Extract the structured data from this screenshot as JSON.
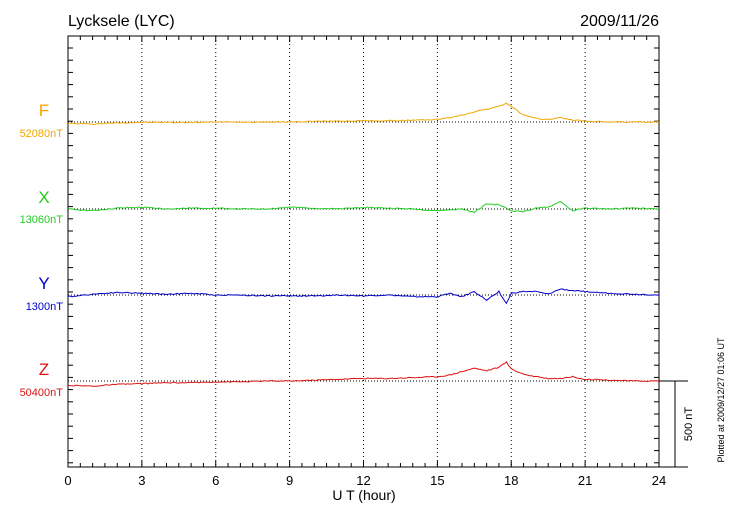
{
  "header": {
    "station": "Lycksele (LYC)",
    "date": "2009/11/26"
  },
  "footer": {
    "plotted_note": "Plotted at 2009/12/27 01:06 UT",
    "scale_label": "500 nT"
  },
  "chart_data": {
    "type": "line",
    "xlabel": "U T (hour)",
    "xlim": [
      0,
      24
    ],
    "x_ticks": [
      0,
      3,
      6,
      9,
      12,
      15,
      18,
      21,
      24
    ],
    "x_tick_labels": [
      "0",
      "3",
      "6",
      "9",
      "12",
      "15",
      "18",
      "21",
      "24"
    ],
    "scale_bar_nT": 500,
    "grid": "vertical dotted at every 3 h; dotted baseline per component",
    "series": [
      {
        "name": "F",
        "baseline_label": "52080nT",
        "color": "#f0a800",
        "x": [
          0,
          1,
          2,
          3,
          4,
          5,
          6,
          7,
          8,
          9,
          10,
          11,
          12,
          13,
          14,
          15,
          15.5,
          16,
          16.5,
          17,
          17.5,
          17.8,
          18,
          18.5,
          19,
          19.5,
          20,
          20.5,
          21,
          22,
          23,
          24
        ],
        "y": [
          -8,
          -12,
          -5,
          -2,
          -2,
          -2,
          0,
          0,
          0,
          0,
          4,
          5,
          7,
          7,
          10,
          15,
          25,
          40,
          60,
          75,
          90,
          110,
          90,
          40,
          20,
          15,
          25,
          12,
          5,
          0,
          0,
          0
        ]
      },
      {
        "name": "X",
        "baseline_label": "13060nT",
        "color": "#22cc22",
        "x": [
          0,
          1,
          2,
          3,
          4,
          5,
          6,
          7,
          8,
          9,
          10,
          11,
          12,
          13,
          14,
          15,
          16,
          16.5,
          17,
          17.5,
          18,
          18.5,
          19,
          19.5,
          20,
          20.2,
          20.5,
          21,
          22,
          23,
          24
        ],
        "y": [
          0,
          -10,
          5,
          10,
          0,
          5,
          5,
          0,
          0,
          10,
          5,
          0,
          10,
          5,
          0,
          -10,
          0,
          -20,
          30,
          25,
          -10,
          -15,
          5,
          10,
          45,
          20,
          -10,
          5,
          0,
          5,
          0
        ]
      },
      {
        "name": "Y",
        "baseline_label": "1300nT",
        "color": "#0000cc",
        "x": [
          0,
          1,
          2,
          3,
          4,
          5,
          6,
          7,
          8,
          9,
          10,
          11,
          12,
          13,
          14,
          15,
          15.5,
          16,
          16.5,
          17,
          17.5,
          17.8,
          18,
          18.5,
          19,
          19.5,
          20,
          20.5,
          21,
          22,
          23,
          24
        ],
        "y": [
          -10,
          5,
          15,
          10,
          5,
          10,
          0,
          0,
          -5,
          -5,
          -5,
          0,
          -5,
          0,
          -10,
          -10,
          10,
          -10,
          20,
          -30,
          20,
          -50,
          10,
          20,
          20,
          5,
          35,
          25,
          20,
          10,
          5,
          0
        ]
      },
      {
        "name": "Z",
        "baseline_label": "50400nT",
        "color": "#dd1111",
        "x": [
          0,
          1,
          2,
          3,
          4,
          5,
          6,
          7,
          8,
          9,
          10,
          11,
          12,
          13,
          14,
          15,
          15.5,
          16,
          16.5,
          17,
          17.5,
          17.8,
          18,
          18.5,
          19,
          19.5,
          20,
          20.5,
          21,
          22,
          23,
          24
        ],
        "y": [
          -25,
          -30,
          -20,
          -15,
          -10,
          -10,
          -5,
          -5,
          0,
          0,
          5,
          10,
          15,
          15,
          20,
          25,
          35,
          55,
          75,
          60,
          80,
          110,
          70,
          40,
          25,
          15,
          15,
          25,
          10,
          5,
          0,
          0
        ]
      }
    ]
  }
}
